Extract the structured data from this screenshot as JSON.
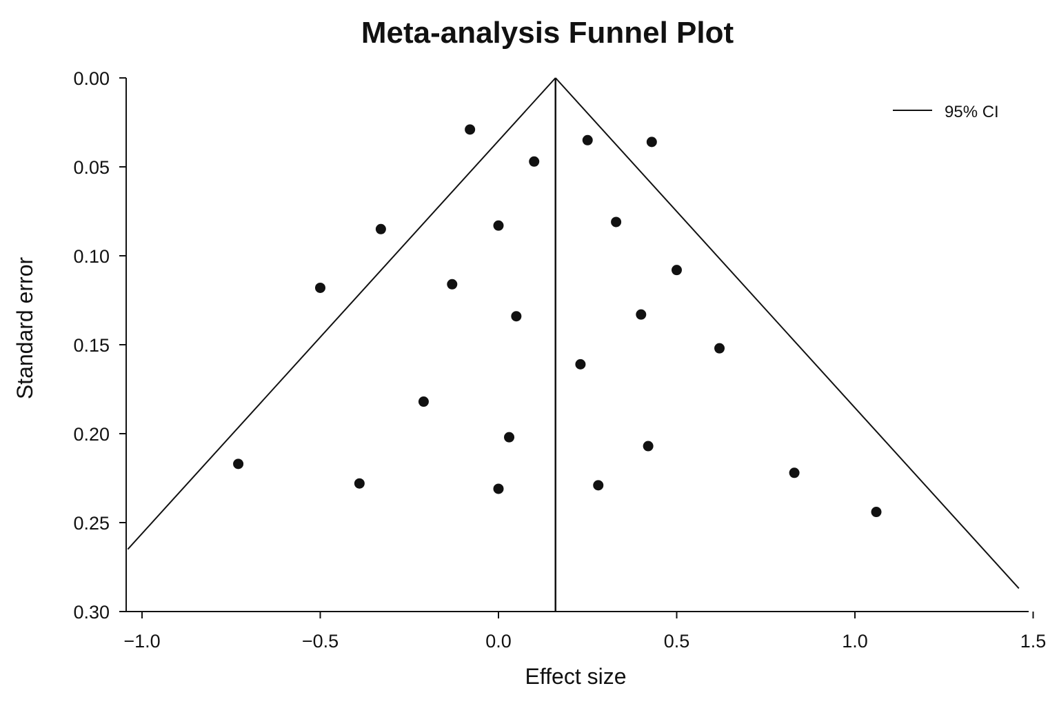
{
  "chart_data": {
    "type": "scatter",
    "title": "Meta-analysis Funnel Plot",
    "xlabel": "Effect size",
    "ylabel": "Standard error",
    "xlim": [
      -1.04,
      1.5
    ],
    "ylim": [
      0.0,
      0.3
    ],
    "y_inverted": true,
    "grid": false,
    "legend_position": "top-right",
    "x_ticks": [
      -1.0,
      -0.5,
      0.0,
      0.5,
      1.0,
      1.5
    ],
    "x_tick_labels": [
      "−1.0",
      "−0.5",
      "0.0",
      "0.5",
      "1.0",
      "1.5"
    ],
    "y_ticks": [
      0.0,
      0.05,
      0.1,
      0.15,
      0.2,
      0.25,
      0.3
    ],
    "y_tick_labels": [
      "0.00",
      "0.05",
      "0.10",
      "0.15",
      "0.20",
      "0.25",
      "0.30"
    ],
    "pooled_effect": 0.16,
    "ci_lines": {
      "label": "95% CI",
      "apex": [
        0.16,
        0.0
      ],
      "left_end": [
        -1.04,
        0.265
      ],
      "right_end": [
        1.46,
        0.287
      ]
    },
    "points": [
      {
        "x": -0.08,
        "y": 0.029
      },
      {
        "x": 0.25,
        "y": 0.035
      },
      {
        "x": 0.43,
        "y": 0.036
      },
      {
        "x": 0.1,
        "y": 0.047
      },
      {
        "x": 0.0,
        "y": 0.083
      },
      {
        "x": 0.33,
        "y": 0.081
      },
      {
        "x": -0.33,
        "y": 0.085
      },
      {
        "x": 0.5,
        "y": 0.108
      },
      {
        "x": -0.5,
        "y": 0.118
      },
      {
        "x": -0.13,
        "y": 0.116
      },
      {
        "x": 0.05,
        "y": 0.134
      },
      {
        "x": 0.4,
        "y": 0.133
      },
      {
        "x": 0.62,
        "y": 0.152
      },
      {
        "x": 0.23,
        "y": 0.161
      },
      {
        "x": -0.21,
        "y": 0.182
      },
      {
        "x": 0.03,
        "y": 0.202
      },
      {
        "x": 0.42,
        "y": 0.207
      },
      {
        "x": -0.73,
        "y": 0.217
      },
      {
        "x": -0.39,
        "y": 0.228
      },
      {
        "x": 0.0,
        "y": 0.231
      },
      {
        "x": 0.28,
        "y": 0.229
      },
      {
        "x": 0.83,
        "y": 0.222
      },
      {
        "x": 1.06,
        "y": 0.244
      }
    ]
  },
  "colors": {
    "ink": "#111111",
    "background": "#ffffff"
  }
}
